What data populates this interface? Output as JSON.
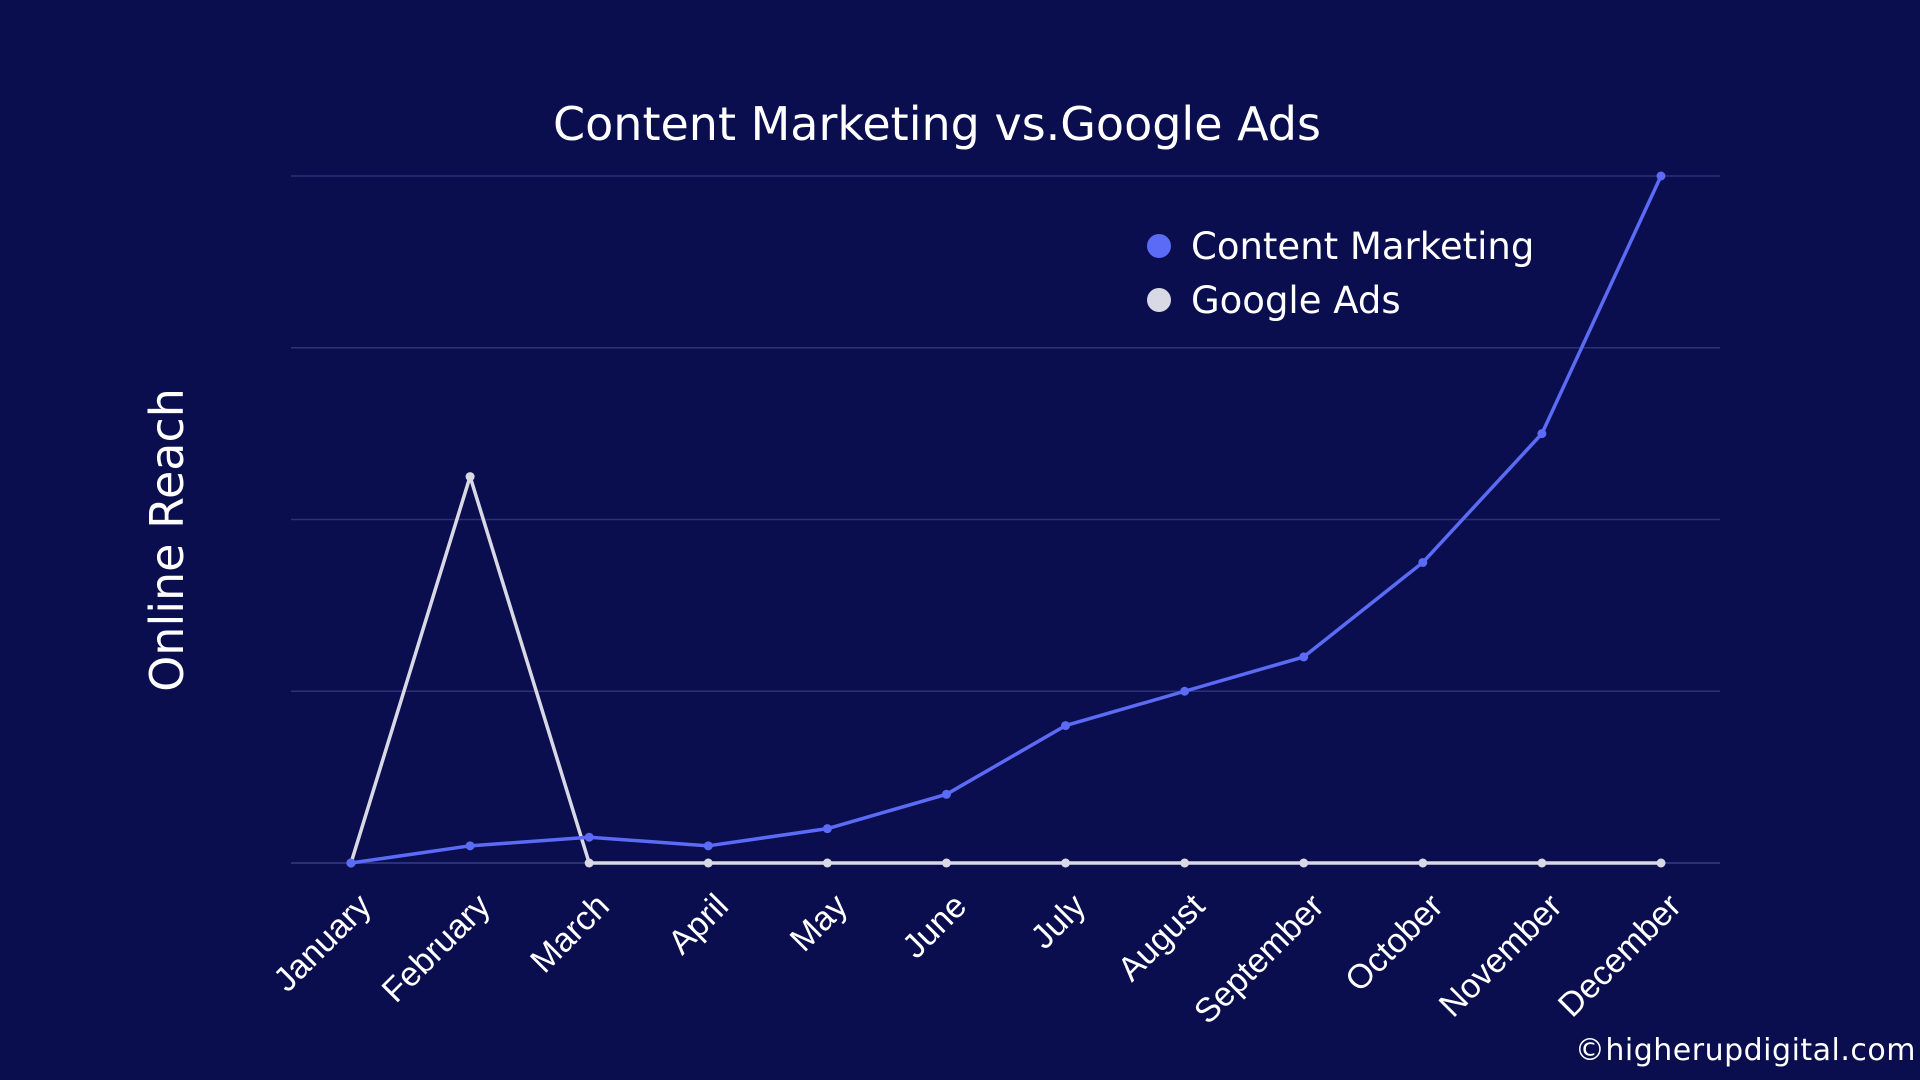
{
  "copyright": "©higherupdigital.com",
  "colors": {
    "background": "#0a0e4e",
    "gridline": "#2a3178",
    "content_marketing": "#5b6bf5",
    "google_ads": "#d9d9e6"
  },
  "chart_data": {
    "type": "line",
    "title": "Content Marketing vs.Google Ads",
    "ylabel": "Online Reach",
    "xlabel": "",
    "ylim": [
      0,
      100
    ],
    "grid": true,
    "y_ticks_shown": false,
    "legend_position": "top-right",
    "categories": [
      "January",
      "February",
      "March",
      "April",
      "May",
      "June",
      "July",
      "August",
      "September",
      "October",
      "November",
      "December"
    ],
    "series": [
      {
        "name": "Content Marketing",
        "color": "#5b6bf5",
        "values": [
          0,
          2.5,
          3.75,
          2.5,
          5,
          10,
          20,
          25,
          30,
          43.75,
          62.5,
          100
        ]
      },
      {
        "name": "Google Ads",
        "color": "#d9d9e6",
        "values": [
          0,
          56.25,
          0,
          0,
          0,
          0,
          0,
          0,
          0,
          0,
          0,
          0
        ]
      }
    ]
  }
}
